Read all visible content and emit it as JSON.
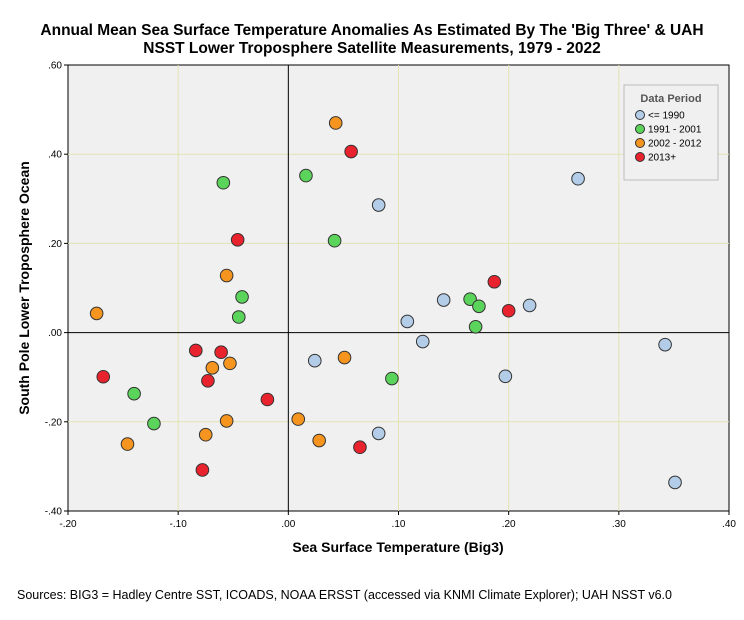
{
  "chart_data": {
    "type": "scatter",
    "title_line1": "Annual Mean Sea Surface Temperature Anomalies As Estimated By The 'Big Three' & UAH",
    "title_line2": "NSST Lower Troposphere Satellite Measurements, 1979 - 2022",
    "xlabel": "Sea Surface Temperature (Big3)",
    "ylabel": "South Pole Lower Troposphere Ocean",
    "xlim": [
      -0.2,
      0.4
    ],
    "ylim": [
      -0.4,
      0.6
    ],
    "xticks": [
      -0.2,
      -0.1,
      0.0,
      0.1,
      0.2,
      0.3,
      0.4
    ],
    "yticks": [
      -0.4,
      -0.2,
      0.0,
      0.2,
      0.4,
      0.6
    ],
    "xtick_labels": [
      "-.20",
      "-.10",
      ".00",
      ".10",
      ".20",
      ".30",
      ".40"
    ],
    "ytick_labels": [
      "-.40",
      "-.20",
      ".00",
      ".20",
      ".40",
      ".60"
    ],
    "grid": true,
    "reference_lines": {
      "x": 0.0,
      "y": 0.0
    },
    "legend": {
      "title": "Data Period",
      "position": "top-right"
    },
    "series": [
      {
        "name": "<= 1990",
        "color": "#b3cde8",
        "points": [
          [
            0.263,
            0.345
          ],
          [
            0.082,
            0.286
          ],
          [
            0.141,
            0.073
          ],
          [
            0.219,
            0.061
          ],
          [
            0.108,
            0.025
          ],
          [
            0.122,
            -0.02
          ],
          [
            0.024,
            -0.063
          ],
          [
            0.197,
            -0.098
          ],
          [
            0.342,
            -0.027
          ],
          [
            0.082,
            -0.226
          ],
          [
            0.351,
            -0.336
          ]
        ]
      },
      {
        "name": "1991 - 2001",
        "color": "#5bd45b",
        "points": [
          [
            -0.059,
            0.336
          ],
          [
            0.016,
            0.352
          ],
          [
            0.042,
            0.206
          ],
          [
            -0.042,
            0.08
          ],
          [
            -0.045,
            0.035
          ],
          [
            0.165,
            0.075
          ],
          [
            0.173,
            0.059
          ],
          [
            0.17,
            0.013
          ],
          [
            0.094,
            -0.103
          ],
          [
            -0.14,
            -0.137
          ],
          [
            -0.122,
            -0.204
          ]
        ]
      },
      {
        "name": "2002 - 2012",
        "color": "#f5951f",
        "points": [
          [
            0.043,
            0.47
          ],
          [
            -0.056,
            0.128
          ],
          [
            -0.174,
            0.043
          ],
          [
            -0.069,
            -0.079
          ],
          [
            -0.053,
            -0.069
          ],
          [
            0.051,
            -0.056
          ],
          [
            -0.056,
            -0.198
          ],
          [
            -0.075,
            -0.229
          ],
          [
            0.009,
            -0.194
          ],
          [
            0.028,
            -0.242
          ],
          [
            -0.146,
            -0.25
          ]
        ]
      },
      {
        "name": "2013+",
        "color": "#e8232e",
        "points": [
          [
            0.057,
            0.406
          ],
          [
            -0.046,
            0.208
          ],
          [
            0.187,
            0.114
          ],
          [
            0.2,
            0.049
          ],
          [
            -0.084,
            -0.04
          ],
          [
            -0.061,
            -0.044
          ],
          [
            -0.168,
            -0.099
          ],
          [
            -0.073,
            -0.108
          ],
          [
            -0.019,
            -0.15
          ],
          [
            0.065,
            -0.257
          ],
          [
            -0.078,
            -0.308
          ]
        ]
      }
    ]
  },
  "source_note": "Sources: BIG3 = Hadley Centre SST, ICOADS, NOAA ERSST (accessed via KNMI Climate Explorer); UAH NSST v6.0"
}
